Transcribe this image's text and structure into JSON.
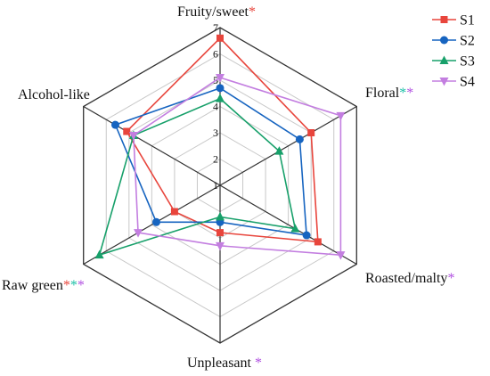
{
  "chart_data": {
    "type": "radar",
    "axes": [
      "Fruity/sweet",
      "Floral",
      "Roasted/malty",
      "Unpleasant",
      "Raw green",
      "Alcohol-like"
    ],
    "axis_marks": [
      [
        {
          "text": "*",
          "color": "#e8453c"
        }
      ],
      [
        {
          "text": "*",
          "color": "#1bbfa6"
        },
        {
          "text": "*",
          "color": "#b04fe0"
        }
      ],
      [
        {
          "text": "*",
          "color": "#b04fe0"
        }
      ],
      [
        {
          "text": "*",
          "color": "#b04fe0"
        }
      ],
      [
        {
          "text": "*",
          "color": "#e8453c"
        },
        {
          "text": "*",
          "color": "#1bbfa6"
        },
        {
          "text": "*",
          "color": "#b04fe0"
        }
      ],
      []
    ],
    "rlim": [
      1,
      7
    ],
    "ticks": [
      "1",
      "2",
      "3",
      "4",
      "5",
      "6",
      "7"
    ],
    "grid": true,
    "legend_position": "top-right",
    "series": [
      {
        "name": "S1",
        "color": "#e8453c",
        "marker": "square",
        "values": [
          6.6,
          5.0,
          5.3,
          2.8,
          3.0,
          5.1
        ]
      },
      {
        "name": "S2",
        "color": "#1664c0",
        "marker": "circle",
        "values": [
          4.7,
          4.5,
          4.8,
          2.4,
          3.8,
          5.6
        ]
      },
      {
        "name": "S3",
        "color": "#17a06a",
        "marker": "triangle-up",
        "values": [
          4.3,
          3.6,
          4.3,
          2.2,
          6.3,
          4.8
        ]
      },
      {
        "name": "S4",
        "color": "#c37ee0",
        "marker": "triangle-down",
        "values": [
          5.1,
          6.3,
          6.3,
          3.3,
          4.6,
          4.8
        ]
      }
    ]
  }
}
